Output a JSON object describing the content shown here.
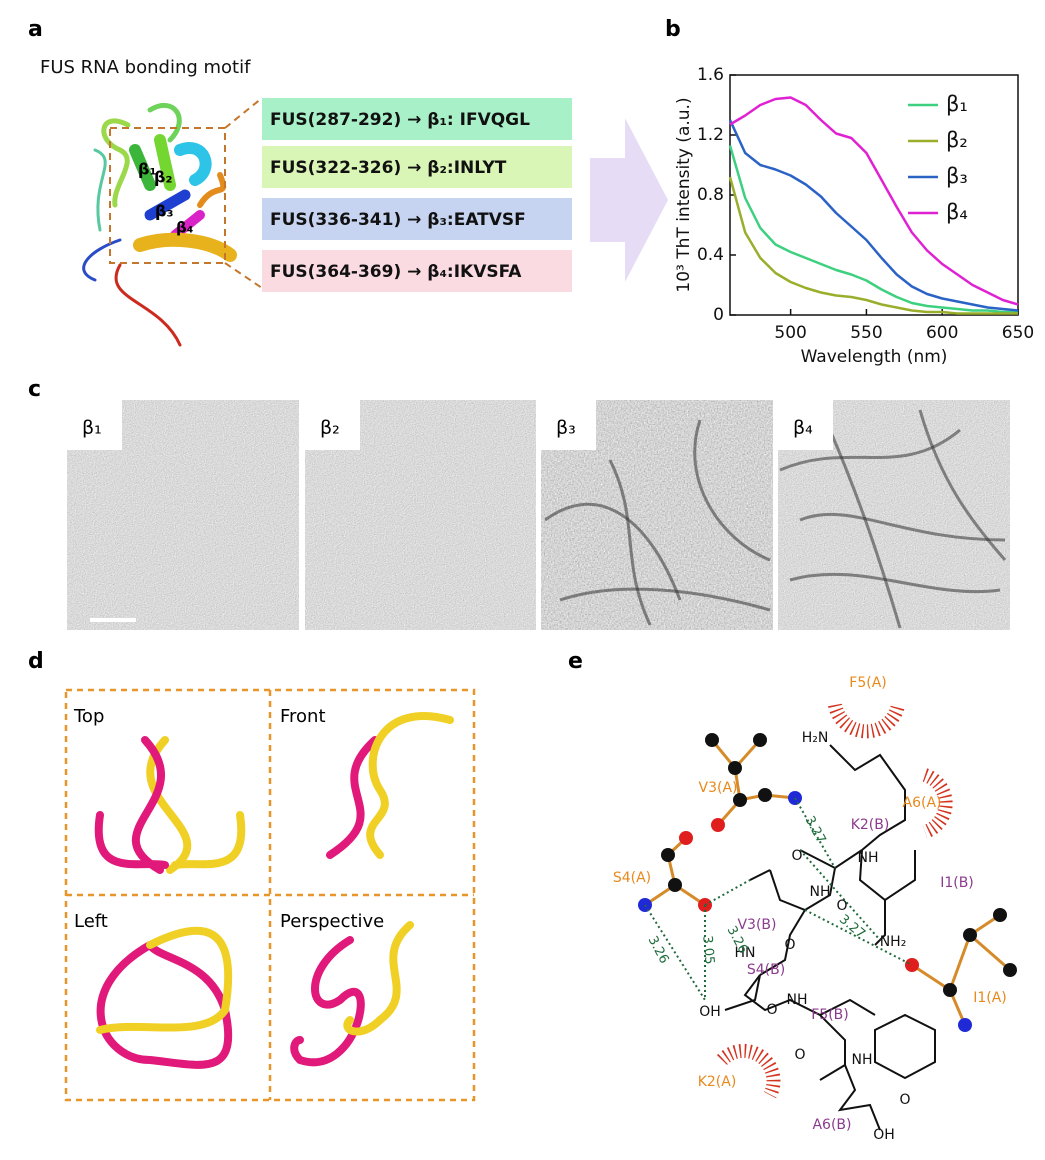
{
  "panel_labels": [
    "a",
    "b",
    "c",
    "d",
    "e"
  ],
  "panel_a": {
    "title": "FUS RNA bonding motif",
    "structure_labels": [
      "β₁",
      "β₂",
      "β₃",
      "β₄"
    ],
    "motifs": [
      "FUS(287-292) → β₁: IFVQGL",
      "FUS(322-326) → β₂:INLYT",
      "FUS(336-341) → β₃:EATVSF",
      "FUS(364-369) → β₄:IKVSFA"
    ]
  },
  "chart_data": {
    "type": "line",
    "xlabel": "Wavelength (nm)",
    "ylabel": "10³ ThT intensity (a.u.)",
    "x": [
      460,
      470,
      480,
      490,
      500,
      510,
      520,
      530,
      540,
      550,
      560,
      570,
      580,
      590,
      600,
      610,
      620,
      630,
      640,
      650
    ],
    "series": [
      {
        "name": "β₁",
        "color": "#3dd07f",
        "values": [
          1.13,
          0.78,
          0.58,
          0.47,
          0.42,
          0.38,
          0.34,
          0.3,
          0.27,
          0.23,
          0.17,
          0.12,
          0.08,
          0.06,
          0.05,
          0.04,
          0.03,
          0.03,
          0.02,
          0.02
        ]
      },
      {
        "name": "β₂",
        "color": "#9aae2c",
        "values": [
          0.92,
          0.55,
          0.38,
          0.28,
          0.22,
          0.18,
          0.15,
          0.13,
          0.12,
          0.1,
          0.07,
          0.05,
          0.03,
          0.02,
          0.02,
          0.01,
          0.01,
          0.01,
          0.01,
          0.01
        ]
      },
      {
        "name": "β₃",
        "color": "#2a62c6",
        "values": [
          1.3,
          1.08,
          1.0,
          0.97,
          0.93,
          0.87,
          0.79,
          0.68,
          0.59,
          0.5,
          0.38,
          0.27,
          0.19,
          0.14,
          0.11,
          0.09,
          0.07,
          0.05,
          0.04,
          0.03
        ]
      },
      {
        "name": "β₄",
        "color": "#e021d3",
        "values": [
          1.27,
          1.33,
          1.4,
          1.44,
          1.45,
          1.4,
          1.3,
          1.21,
          1.18,
          1.08,
          0.9,
          0.72,
          0.55,
          0.43,
          0.34,
          0.27,
          0.2,
          0.15,
          0.1,
          0.07
        ]
      }
    ],
    "xlim": [
      460,
      650
    ],
    "ylim": [
      0,
      1.6
    ],
    "xticks": [
      500,
      550,
      600,
      650
    ],
    "yticks": [
      0,
      0.4,
      0.8,
      1.2,
      1.6
    ],
    "grid": false,
    "legend": "upper right"
  },
  "panel_c": {
    "images": [
      "β₁",
      "β₂",
      "β₃",
      "β₄"
    ]
  },
  "panel_d": {
    "views": [
      "Top",
      "Front",
      "Left",
      "Perspective"
    ]
  },
  "panel_e": {
    "residues": [
      "F5(A)",
      "A6(A)",
      "V3(A)",
      "K2(B)",
      "S4(A)",
      "I1(B)",
      "V3(B)",
      "S4(B)",
      "F5(B)",
      "I1(A)",
      "K2(A)",
      "A6(B)"
    ],
    "atoms": [
      "H₂N",
      "NH",
      "NH",
      "NH₂",
      "HN",
      "OH",
      "NH",
      "NH",
      "OH",
      "O",
      "O",
      "O",
      "O",
      "O",
      "O"
    ],
    "distances": [
      3.27,
      3.26,
      3.05,
      3.26,
      3.27
    ]
  }
}
